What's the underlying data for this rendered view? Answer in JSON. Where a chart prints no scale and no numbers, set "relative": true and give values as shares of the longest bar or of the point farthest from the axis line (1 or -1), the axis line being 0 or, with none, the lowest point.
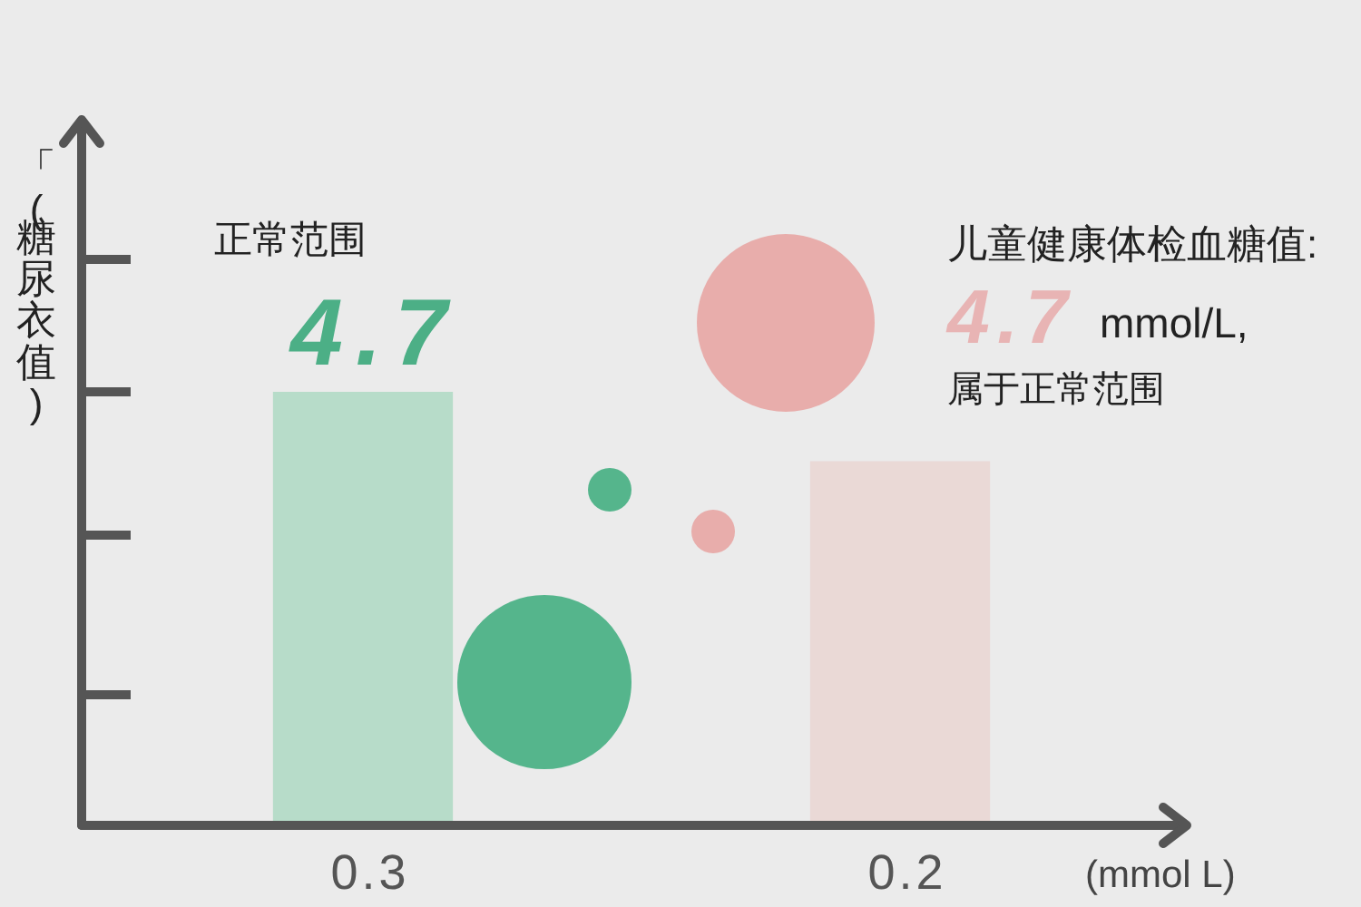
{
  "chart_data": {
    "type": "bar",
    "relative": true,
    "categories": [
      "0.3",
      "0.2"
    ],
    "values": [
      1,
      0.84
    ],
    "colors": [
      "#b7dcc9",
      "#ead9d6"
    ],
    "xlabel": "(mmol L)",
    "ylabel": "「(糖尿衣值)",
    "annotations": [
      "正常范围",
      "4.7",
      "儿童健康体检血糖值:",
      "4.7",
      "mmol/L,",
      "属于正常范围"
    ]
  }
}
